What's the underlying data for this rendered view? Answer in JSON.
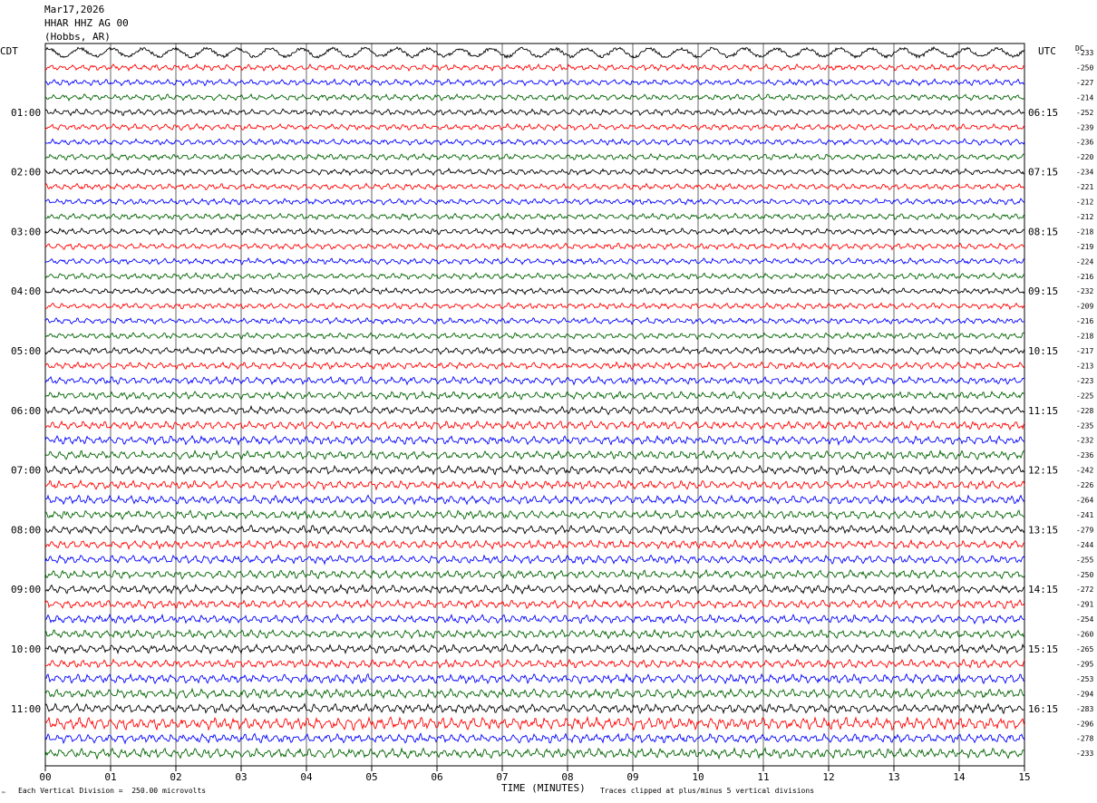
{
  "header": {
    "date": "Mar17,2026",
    "station": "HHAR HHZ AG 00",
    "location": "(Hobbs, AR)"
  },
  "left_zone_label": "CDT",
  "right_zone_label": "UTC",
  "dc_label": "DC",
  "footer": {
    "scale_note": "Each Vertical Division =  250.00 microvolts",
    "clip_note": "Traces clipped at plus/minus 5 vertical divisions",
    "corner_mark": "™"
  },
  "chart_data": {
    "type": "line",
    "xlabel": "TIME (MINUTES)",
    "x_ticks": [
      "00",
      "01",
      "02",
      "03",
      "04",
      "05",
      "06",
      "07",
      "08",
      "09",
      "10",
      "11",
      "12",
      "13",
      "14",
      "15"
    ],
    "xlim": [
      0,
      15
    ],
    "grid": true,
    "series_colors": [
      "#000000",
      "#ff0000",
      "#0000ff",
      "#006400"
    ],
    "left_time_labels": [
      "01:00",
      "02:00",
      "03:00",
      "04:00",
      "05:00",
      "06:00",
      "07:00",
      "08:00",
      "09:00",
      "10:00",
      "11:00"
    ],
    "right_time_labels": [
      "06:15",
      "07:15",
      "08:15",
      "09:15",
      "10:15",
      "11:15",
      "12:15",
      "13:15",
      "14:15",
      "15:15",
      "16:15"
    ],
    "dc_offsets": [
      "-233",
      "-250",
      "-227",
      "-214",
      "-252",
      "-239",
      "-236",
      "-220",
      "-234",
      "-221",
      "-212",
      "-212",
      "-218",
      "-219",
      "-224",
      "-216",
      "-232",
      "-209",
      "-216",
      "-218",
      "-217",
      "-213",
      "-223",
      "-225",
      "-228",
      "-235",
      "-232",
      "-236",
      "-242",
      "-226",
      "-264",
      "-241",
      "-279",
      "-244",
      "-255",
      "-250",
      "-272",
      "-291",
      "-254",
      "-260",
      "-265",
      "-295",
      "-253",
      "-294",
      "-283",
      "-296",
      "-278",
      "-233"
    ],
    "amplitude_levels": [
      1.4,
      0.8,
      0.8,
      0.8,
      0.8,
      0.8,
      0.8,
      0.8,
      0.8,
      0.8,
      0.8,
      0.8,
      0.8,
      0.8,
      0.8,
      0.8,
      0.8,
      0.8,
      0.8,
      0.8,
      0.9,
      0.9,
      1.0,
      1.0,
      1.0,
      1.1,
      1.1,
      1.1,
      1.1,
      1.1,
      1.1,
      1.1,
      1.1,
      1.1,
      1.1,
      1.1,
      1.1,
      1.1,
      1.1,
      1.1,
      1.1,
      1.1,
      1.2,
      1.2,
      1.2,
      1.6,
      1.2,
      1.3
    ]
  }
}
